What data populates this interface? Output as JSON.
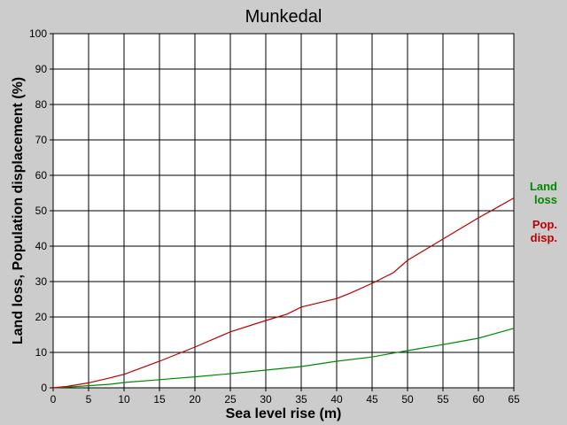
{
  "chart_data": {
    "type": "line",
    "title": "Munkedal",
    "xlabel": "Sea level rise (m)",
    "ylabel": "Land loss, Population displacement (%)",
    "xlim": [
      0,
      65
    ],
    "ylim": [
      0,
      100
    ],
    "xticks": [
      0,
      5,
      10,
      15,
      20,
      25,
      30,
      35,
      40,
      45,
      50,
      55,
      60,
      65
    ],
    "yticks": [
      0,
      10,
      20,
      30,
      40,
      50,
      60,
      70,
      80,
      90,
      100
    ],
    "grid": true,
    "background": "#cccccc",
    "plot_background": "#ffffff",
    "legend_position": "right",
    "series": [
      {
        "name": "Land loss",
        "legend_lines": [
          "Land",
          "loss"
        ],
        "color": "#008800",
        "x": [
          0,
          2,
          5,
          8,
          10,
          15,
          20,
          25,
          30,
          35,
          40,
          45,
          48,
          50,
          55,
          60,
          65
        ],
        "y": [
          0,
          0.2,
          0.6,
          1.0,
          1.5,
          2.3,
          3.1,
          4.0,
          5.0,
          6.0,
          7.5,
          8.7,
          9.8,
          10.5,
          12.2,
          14.0,
          16.8
        ]
      },
      {
        "name": "Pop. disp.",
        "legend_lines": [
          "Pop.",
          "disp."
        ],
        "color": "#bb0000",
        "x": [
          0,
          2,
          5,
          8,
          10,
          15,
          20,
          25,
          30,
          33,
          35,
          40,
          42,
          45,
          48,
          50,
          55,
          60,
          62,
          65
        ],
        "y": [
          0,
          0.4,
          1.4,
          2.8,
          3.8,
          7.5,
          11.5,
          15.8,
          19.0,
          20.8,
          22.8,
          25.2,
          26.8,
          29.5,
          32.5,
          36.0,
          42.0,
          48.0,
          50.2,
          53.6
        ]
      }
    ]
  }
}
